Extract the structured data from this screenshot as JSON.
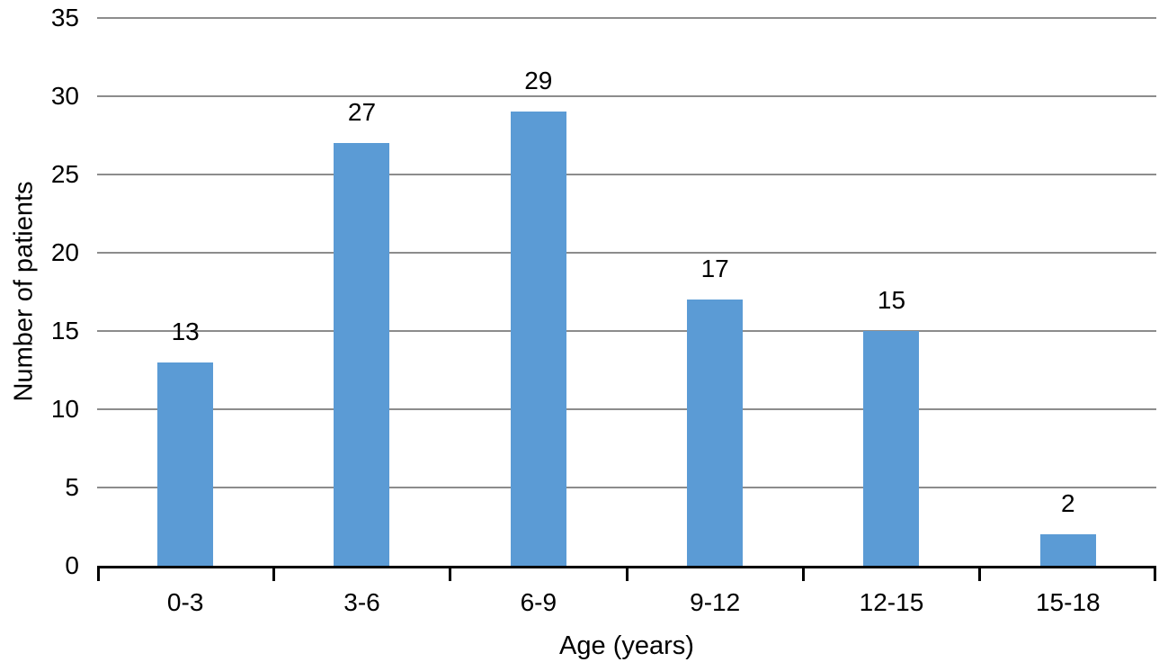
{
  "chart_data": {
    "type": "bar",
    "title": "",
    "categories": [
      "0-3",
      "3-6",
      "6-9",
      "9-12",
      "12-15",
      "15-18"
    ],
    "values": [
      13,
      27,
      29,
      17,
      15,
      2
    ],
    "data_labels": [
      "13",
      "27",
      "29",
      "17",
      "15",
      "2"
    ],
    "xlabel": "Age (years)",
    "ylabel": "Number of patients",
    "ylim": [
      0,
      35
    ],
    "yticks": [
      0,
      5,
      10,
      15,
      20,
      25,
      30,
      35
    ],
    "grid": "horizontal",
    "legend": "none",
    "colors": {
      "bar": "#5B9BD5",
      "gridline": "#8C8C8C",
      "axis": "#000000",
      "text": "#000000",
      "background": "#FFFFFF"
    }
  }
}
